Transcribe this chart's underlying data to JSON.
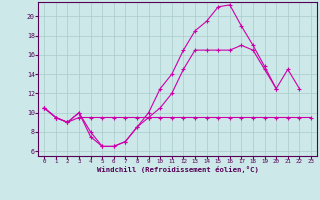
{
  "xlabel": "Windchill (Refroidissement éolien,°C)",
  "bg_color": "#cce8e8",
  "grid_color": "#aacccc",
  "line_color": "#cc00aa",
  "xlim": [
    -0.5,
    23.5
  ],
  "ylim": [
    5.5,
    21.5
  ],
  "yticks": [
    6,
    8,
    10,
    12,
    14,
    16,
    18,
    20
  ],
  "xticks": [
    0,
    1,
    2,
    3,
    4,
    5,
    6,
    7,
    8,
    9,
    10,
    11,
    12,
    13,
    14,
    15,
    16,
    17,
    18,
    19,
    20,
    21,
    22,
    23
  ],
  "lineA_x": [
    0,
    1,
    2,
    3,
    4,
    5,
    6,
    7,
    8,
    9,
    10,
    11,
    12,
    13,
    14,
    15,
    16,
    17,
    18,
    19,
    20
  ],
  "lineA_y": [
    10.5,
    9.5,
    9.0,
    10.0,
    7.5,
    6.5,
    6.5,
    7.0,
    8.5,
    10.0,
    12.5,
    14.0,
    16.5,
    18.5,
    19.5,
    21.0,
    21.2,
    19.0,
    17.0,
    14.8,
    12.5
  ],
  "lineB_x": [
    0,
    1,
    2,
    3,
    4,
    5,
    6,
    7,
    8,
    9,
    10,
    11,
    12,
    13,
    14,
    15,
    16,
    17,
    18,
    19,
    20,
    21,
    22
  ],
  "lineB_y": [
    10.5,
    9.5,
    9.0,
    10.0,
    8.0,
    6.5,
    6.5,
    7.0,
    8.5,
    9.5,
    10.5,
    12.0,
    14.5,
    16.5,
    16.5,
    16.5,
    16.5,
    17.0,
    16.5,
    14.5,
    12.5,
    14.5,
    12.5
  ],
  "lineC_x": [
    0,
    1,
    2,
    3,
    4,
    5,
    6,
    7,
    8,
    9,
    10,
    11,
    12,
    13,
    14,
    15,
    16,
    17,
    18,
    19,
    20,
    21,
    22,
    23
  ],
  "lineC_y": [
    10.5,
    9.5,
    9.0,
    9.5,
    9.5,
    9.5,
    9.5,
    9.5,
    9.5,
    9.5,
    9.5,
    9.5,
    9.5,
    9.5,
    9.5,
    9.5,
    9.5,
    9.5,
    9.5,
    9.5,
    9.5,
    9.5,
    9.5,
    9.5
  ]
}
